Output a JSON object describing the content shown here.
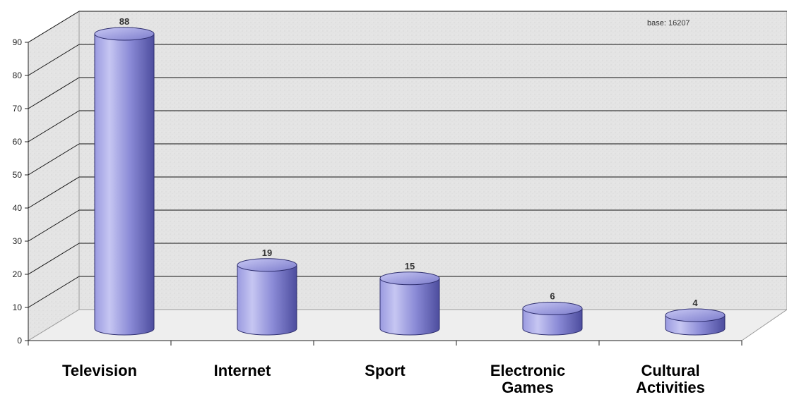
{
  "chart_data": {
    "type": "bar",
    "style": "3d-cylinder",
    "categories": [
      "Television",
      "Internet",
      "Sport",
      "Electronic Games",
      "Cultural Activities"
    ],
    "category_lines": [
      [
        "Television"
      ],
      [
        "Internet"
      ],
      [
        "Sport"
      ],
      [
        "Electronic",
        "Games"
      ],
      [
        "Cultural",
        "Activities"
      ]
    ],
    "values": [
      88,
      19,
      15,
      6,
      4
    ],
    "ylim": [
      0,
      90
    ],
    "yticks": [
      0,
      10,
      20,
      30,
      40,
      50,
      60,
      70,
      80,
      90
    ],
    "grid": true,
    "annotation": "base: 16207",
    "colors": {
      "bar_light": "#b8b8ec",
      "bar_mid": "#8a8ad6",
      "bar_dark": "#4d4d9e",
      "wall": "#e6e6e6",
      "grid": "#111111"
    }
  }
}
